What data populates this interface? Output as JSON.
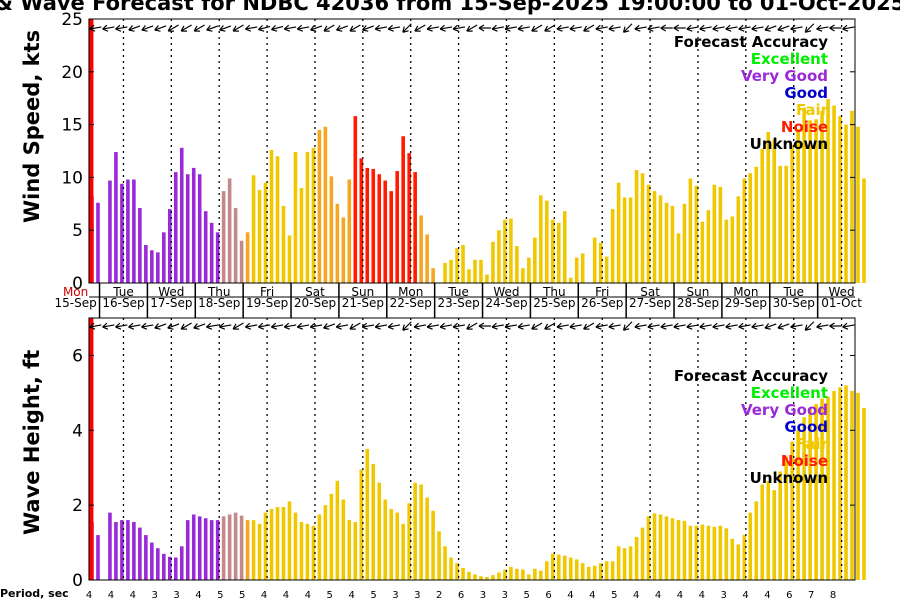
{
  "title": "& Wave Forecast for NDBC 42036 from 15-Sep-2025 19:00:00 to 01-Oct-2025",
  "colors": {
    "excellent": "#00ee00",
    "very_good": "#9a2ad8",
    "good": "#0000cc",
    "fair": "#f0c800",
    "noise": "#ff1a00",
    "unknown": "#000000",
    "now_line": "#ff0000",
    "frame": "#000000"
  },
  "legend": {
    "heading": "Forecast Accuracy",
    "excellent": "Excellent",
    "very_good": "Very Good",
    "good": "Good",
    "fair": "Fair",
    "noise": "Noise",
    "unknown": "Unknown"
  },
  "day_labels": [
    {
      "day": "Mon",
      "date": "15-Sep"
    },
    {
      "day": "Tue",
      "date": "16-Sep"
    },
    {
      "day": "Wed",
      "date": "17-Sep"
    },
    {
      "day": "Thu",
      "date": "18-Sep"
    },
    {
      "day": "Fri",
      "date": "19-Sep"
    },
    {
      "day": "Sat",
      "date": "20-Sep"
    },
    {
      "day": "Sun",
      "date": "21-Sep"
    },
    {
      "day": "Mon",
      "date": "22-Sep"
    },
    {
      "day": "Tue",
      "date": "23-Sep"
    },
    {
      "day": "Wed",
      "date": "24-Sep"
    },
    {
      "day": "Thu",
      "date": "25-Sep"
    },
    {
      "day": "Fri",
      "date": "26-Sep"
    },
    {
      "day": "Sat",
      "date": "27-Sep"
    },
    {
      "day": "Sun",
      "date": "28-Sep"
    },
    {
      "day": "Mon",
      "date": "29-Sep"
    },
    {
      "day": "Tue",
      "date": "30-Sep"
    },
    {
      "day": "Wed",
      "date": "01-Oct"
    }
  ],
  "period_label": "Period, sec",
  "period_values": [
    4,
    4,
    4,
    3,
    3,
    4,
    5,
    5,
    4,
    4,
    4,
    5,
    4,
    5,
    3,
    3,
    2,
    6,
    3,
    3,
    5,
    6,
    4,
    4,
    5,
    4,
    4,
    4,
    4,
    3,
    4,
    4,
    6,
    7,
    8
  ],
  "chart_data": [
    {
      "type": "bar",
      "title": "Wind Speed Forecast",
      "ylabel": "Wind Speed, kts",
      "ylim": [
        0,
        25
      ],
      "yticks": [
        0,
        5,
        10,
        15,
        20,
        25
      ],
      "x_start_day": 0.28,
      "x_days": 16.0,
      "bar_step_days": 0.125,
      "now_day": 0.32,
      "values": [
        8.2,
        7.6,
        0,
        9.7,
        12.4,
        9.4,
        9.8,
        9.8,
        7.1,
        3.6,
        3.1,
        2.9,
        4.8,
        7.0,
        10.5,
        12.8,
        10.3,
        10.9,
        10.3,
        6.8,
        5.7,
        4.8,
        8.7,
        9.9,
        7.1,
        4.0,
        4.8,
        10.2,
        8.8,
        9.5,
        12.6,
        12.0,
        7.3,
        4.5,
        12.4,
        9.0,
        12.4,
        12.8,
        14.5,
        14.8,
        10.1,
        7.5,
        6.2,
        9.8,
        15.8,
        11.8,
        10.9,
        10.8,
        10.3,
        9.7,
        8.7,
        10.6,
        13.9,
        12.3,
        10.5,
        6.4,
        4.6,
        1.4,
        0,
        1.9,
        2.2,
        3.3,
        3.6,
        1.3,
        2.2,
        2.2,
        0.8,
        3.9,
        5.0,
        6.0,
        6.1,
        3.5,
        1.4,
        2.4,
        4.3,
        8.3,
        7.8,
        6.0,
        5.7,
        6.8,
        0.5,
        2.4,
        2.8,
        0,
        4.3,
        3.8,
        2.5,
        7.0,
        9.5,
        8.1,
        8.1,
        10.7,
        10.4,
        9.3,
        8.7,
        8.3,
        7.6,
        7.3,
        4.7,
        7.5,
        9.9,
        9.2,
        5.8,
        6.9,
        9.3,
        9.1,
        6.0,
        6.3,
        8.2,
        9.9,
        10.4,
        11.0,
        12.7,
        14.3,
        13.6,
        11.1,
        11.1,
        13.1,
        14.6,
        16.6,
        15.4,
        15.5,
        16.3,
        17.4,
        16.8,
        15.8,
        15.0,
        16.3,
        14.8,
        9.9
      ],
      "colors": [
        "v",
        "v",
        "v",
        "v",
        "v",
        "v",
        "v",
        "v",
        "v",
        "v",
        "v",
        "v",
        "v",
        "v",
        "v",
        "v",
        "v",
        "v",
        "v",
        "v",
        "v",
        "v",
        "m",
        "m",
        "m",
        "m",
        "o",
        "y",
        "y",
        "y",
        "y",
        "y",
        "y",
        "y",
        "y",
        "y",
        "y",
        "y",
        "o",
        "o",
        "o",
        "o",
        "o",
        "o",
        "r",
        "r",
        "r",
        "r",
        "r",
        "r",
        "r",
        "r",
        "r",
        "r",
        "r",
        "o",
        "o",
        "o",
        "y",
        "y",
        "y",
        "y",
        "y",
        "y",
        "y",
        "y",
        "y",
        "y",
        "y",
        "y",
        "y",
        "y",
        "y",
        "y",
        "y",
        "y",
        "y",
        "y",
        "y",
        "y",
        "y",
        "y",
        "y",
        "y",
        "y",
        "y",
        "y",
        "y",
        "y",
        "y",
        "y",
        "y",
        "y",
        "y",
        "y",
        "y",
        "y",
        "y",
        "y",
        "y",
        "y",
        "y",
        "y",
        "y",
        "y",
        "y",
        "y",
        "y",
        "y",
        "y",
        "y",
        "y",
        "y",
        "y",
        "y",
        "y",
        "y",
        "y",
        "y",
        "y",
        "y",
        "y",
        "y",
        "y",
        "y",
        "y",
        "y",
        "y",
        "y",
        "y"
      ],
      "wind_dir_deg": [
        80,
        80,
        80,
        70,
        70,
        70,
        60,
        60,
        60,
        70,
        70,
        60,
        80,
        75,
        75,
        80,
        80,
        70,
        60,
        70,
        60,
        70,
        80,
        80,
        45,
        60,
        80,
        80,
        80,
        60,
        90,
        80,
        80,
        80,
        60,
        60,
        80,
        80,
        60,
        80,
        80,
        45,
        80,
        80,
        90,
        90,
        80,
        80,
        80,
        80,
        80,
        80,
        70,
        70,
        80,
        45,
        80,
        90,
        80
      ]
    },
    {
      "type": "bar",
      "title": "Wave Height Forecast",
      "ylabel": "Wave Height, ft",
      "ylim": [
        0,
        7
      ],
      "yticks": [
        0,
        2,
        4,
        6
      ],
      "x_start_day": 0.28,
      "x_days": 16.0,
      "bar_step_days": 0.125,
      "now_day": 0.32,
      "values": [
        1.55,
        1.2,
        0,
        1.8,
        1.55,
        1.6,
        1.6,
        1.55,
        1.4,
        1.2,
        1.0,
        0.85,
        0.7,
        0.62,
        0.6,
        0.9,
        1.6,
        1.75,
        1.7,
        1.65,
        1.6,
        1.6,
        1.7,
        1.75,
        1.8,
        1.72,
        1.6,
        1.6,
        1.5,
        1.8,
        1.9,
        1.95,
        1.95,
        2.1,
        1.8,
        1.55,
        1.5,
        1.45,
        1.75,
        2.0,
        2.3,
        2.65,
        2.15,
        1.6,
        1.55,
        2.95,
        3.5,
        3.1,
        2.6,
        2.15,
        1.9,
        1.8,
        1.5,
        2.05,
        2.6,
        2.55,
        2.2,
        1.85,
        1.3,
        0.9,
        0.6,
        0.45,
        0.32,
        0.22,
        0.15,
        0.1,
        0.08,
        0.13,
        0.2,
        0.28,
        0.35,
        0.3,
        0.28,
        0.15,
        0.3,
        0.25,
        0.5,
        0.7,
        0.68,
        0.65,
        0.6,
        0.55,
        0.45,
        0.35,
        0.38,
        0.45,
        0.5,
        0.5,
        0.9,
        0.85,
        0.9,
        1.15,
        1.4,
        1.7,
        1.78,
        1.75,
        1.7,
        1.65,
        1.6,
        1.58,
        1.45,
        1.45,
        1.48,
        1.45,
        1.42,
        1.45,
        1.38,
        1.1,
        0.95,
        1.2,
        1.8,
        2.1,
        2.55,
        2.65,
        2.4,
        2.9,
        3.3,
        3.7,
        4.0,
        4.35,
        4.6,
        4.7,
        4.85,
        4.9,
        5.05,
        5.15,
        5.2,
        5.05,
        5.0,
        4.6
      ],
      "colors": [
        "v",
        "v",
        "v",
        "v",
        "v",
        "v",
        "v",
        "v",
        "v",
        "v",
        "v",
        "v",
        "v",
        "v",
        "v",
        "v",
        "v",
        "v",
        "v",
        "v",
        "v",
        "v",
        "m",
        "m",
        "m",
        "m",
        "o",
        "y",
        "y",
        "y",
        "y",
        "y",
        "y",
        "y",
        "y",
        "y",
        "y",
        "y",
        "y",
        "y",
        "y",
        "y",
        "y",
        "y",
        "y",
        "y",
        "y",
        "y",
        "y",
        "y",
        "y",
        "y",
        "y",
        "y",
        "y",
        "y",
        "y",
        "y",
        "y",
        "y",
        "y",
        "y",
        "y",
        "y",
        "y",
        "y",
        "y",
        "y",
        "y",
        "y",
        "y",
        "y",
        "y",
        "y",
        "y",
        "y",
        "y",
        "y",
        "y",
        "y",
        "y",
        "y",
        "y",
        "y",
        "y",
        "y",
        "y",
        "y",
        "y",
        "y",
        "y",
        "y",
        "y",
        "y",
        "y",
        "y",
        "y",
        "y",
        "y",
        "y",
        "y",
        "y",
        "y",
        "y",
        "y",
        "y",
        "y",
        "y",
        "y",
        "y",
        "y",
        "y",
        "y",
        "y",
        "y",
        "y",
        "y",
        "y",
        "y",
        "y",
        "y",
        "y",
        "y",
        "y",
        "y",
        "y",
        "y",
        "y",
        "y",
        "y"
      ],
      "wave_dir_deg": [
        80,
        80,
        80,
        80,
        80,
        70,
        70,
        60,
        70,
        80,
        80,
        60,
        80,
        80,
        80,
        80,
        80,
        80,
        70,
        80,
        60,
        80,
        80,
        80,
        45,
        80,
        80,
        80,
        80,
        60,
        90,
        80,
        80,
        80,
        60,
        60,
        80,
        80,
        60,
        80,
        80,
        45,
        80,
        80,
        80,
        80,
        80,
        80,
        80,
        80,
        80,
        80,
        70,
        70,
        80,
        45,
        80,
        90,
        80
      ]
    }
  ]
}
